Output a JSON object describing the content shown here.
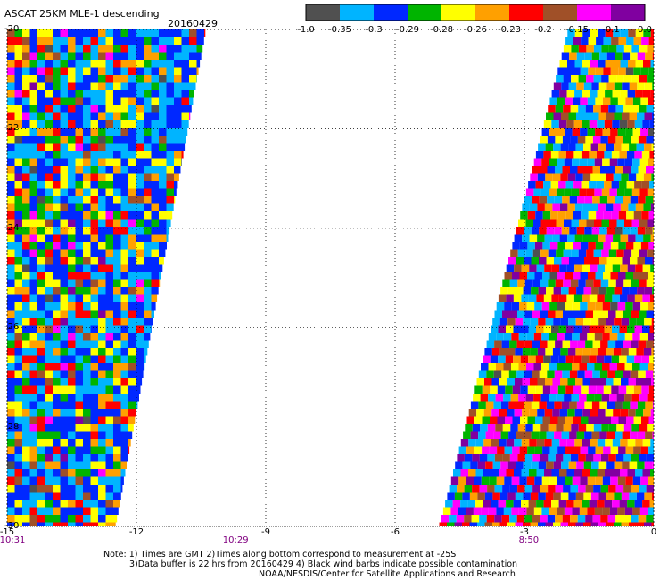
{
  "header": {
    "title": "ASCAT 25KM MLE-1 descending",
    "date": "20160429"
  },
  "colorbar": {
    "labels": [
      "-1.0",
      "-0.35",
      "-0.3",
      "-0.29",
      "-0.28",
      "-0.26",
      "-0.23",
      "-0.2",
      "-0.15",
      "-0.1",
      "0.0"
    ],
    "colors": [
      "#505050",
      "#00b4ff",
      "#0028ff",
      "#00b400",
      "#ffff00",
      "#ffa000",
      "#ff0000",
      "#a05028",
      "#ff00ff",
      "#8000a0"
    ]
  },
  "chart_data": {
    "type": "heatmap",
    "title": "ASCAT 25KM MLE-1 descending",
    "date": "20160429",
    "x_ticks": [
      "-15",
      "-12",
      "-9",
      "-6",
      "-3",
      "0"
    ],
    "y_ticks": [
      "-20",
      "-22",
      "-24",
      "-26",
      "-28",
      "-30"
    ],
    "xlim": [
      -15,
      0
    ],
    "ylim": [
      -30,
      -20
    ],
    "grid": true,
    "time_labels": [
      {
        "lon": -15,
        "text": "10:31"
      },
      {
        "lon": -9.7,
        "text": "10:29"
      },
      {
        "lon": -2.9,
        "text": "8:50"
      }
    ],
    "swaths": [
      {
        "name": "west",
        "lon_left": -15,
        "lon_right_top": -10.4,
        "lon_right_bottom": -12.5,
        "lat_top": -20,
        "lat_bottom": -30
      },
      {
        "name": "east",
        "lon_left_top": -2.0,
        "lon_left_bottom": -5.0,
        "lon_right": 0,
        "lat_top": -20,
        "lat_bottom": -30
      }
    ],
    "value_levels": [
      "-1.0",
      "-0.35",
      "-0.3",
      "-0.29",
      "-0.28",
      "-0.26",
      "-0.23",
      "-0.2",
      "-0.15",
      "-0.1",
      "0.0"
    ]
  },
  "footer": {
    "line1": "Note: 1) Times are GMT 2)Times along bottom correspond to measurement at -25S",
    "line2": "3)Data buffer is 22 hrs from 20160429 4) Black wind barbs indicate possible contamination",
    "line3": "NOAA/NESDIS/Center for Satellite Applications and Research"
  }
}
